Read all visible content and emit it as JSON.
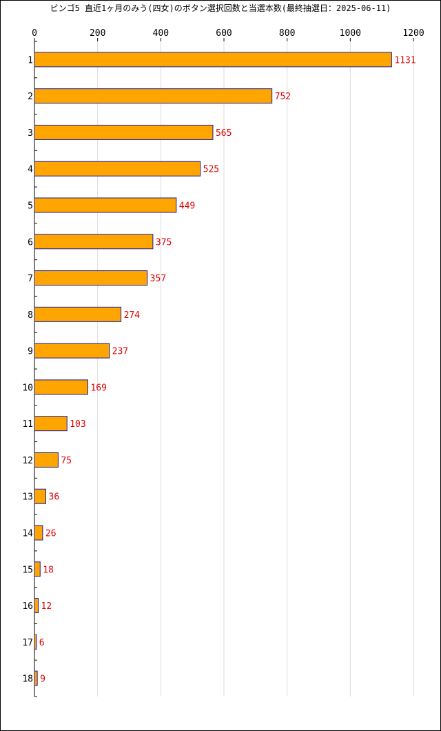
{
  "chart_data": {
    "type": "bar",
    "orientation": "horizontal",
    "title": "ビンゴ5 直近1ヶ月のみう(四女)のボタン選択回数と当選本数(最終抽選日：2025-06-11)",
    "categories": [
      "1",
      "2",
      "3",
      "4",
      "5",
      "6",
      "7",
      "8",
      "9",
      "10",
      "11",
      "12",
      "13",
      "14",
      "15",
      "16",
      "17",
      "18"
    ],
    "values": [
      1131,
      752,
      565,
      525,
      449,
      375,
      357,
      274,
      237,
      169,
      103,
      75,
      36,
      26,
      18,
      12,
      6,
      9
    ],
    "xlim": [
      0,
      1200
    ],
    "x_ticks": [
      0,
      200,
      400,
      600,
      800,
      1000,
      1200
    ],
    "grid": "vertical",
    "x_axis_position": "top",
    "bar_color": "#FFA500",
    "bar_border_color": "#1a1a9a",
    "value_label_color": "#e00000",
    "grid_color": "#dddddd"
  }
}
